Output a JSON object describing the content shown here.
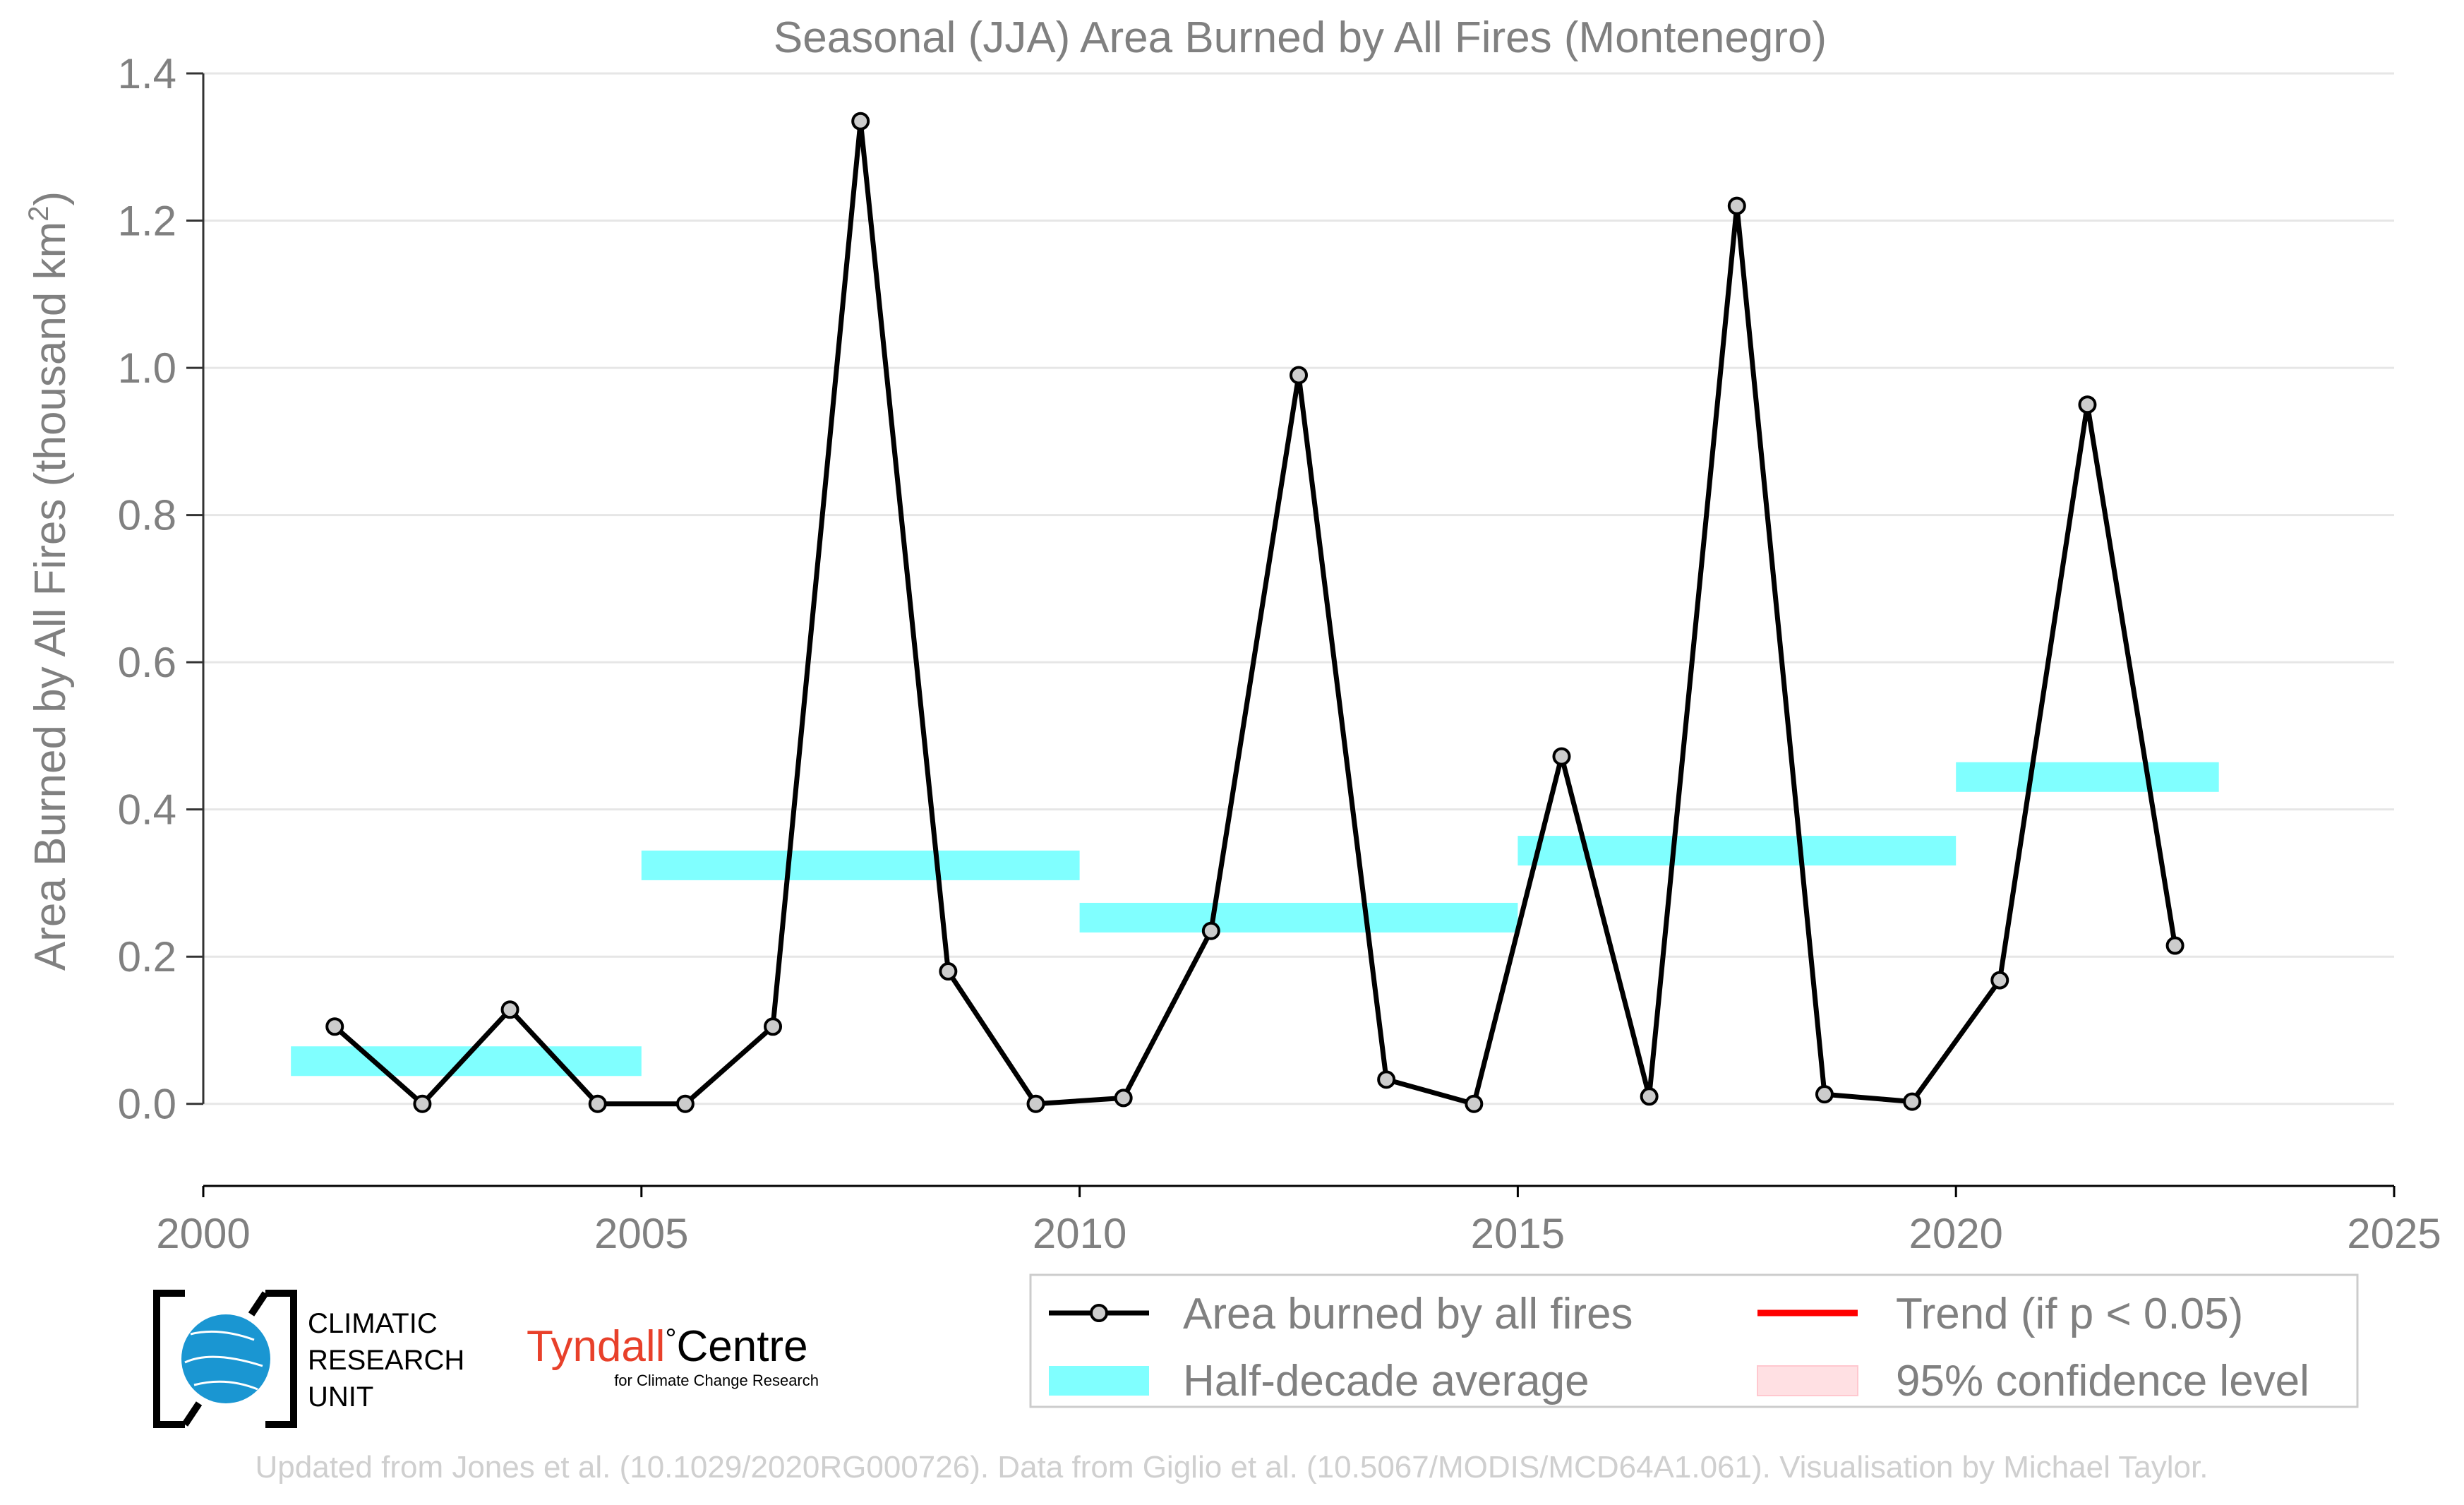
{
  "chart_data": {
    "type": "line",
    "title": "Seasonal (JJA) Area Burned by All Fires (Montenegro)",
    "ylabel_main": "Area Burned by All Fires (thousand km",
    "ylabel_sup": "2",
    "ylabel_end": ")",
    "xlim": [
      2000,
      2025
    ],
    "ylim": [
      -0.1,
      1.4
    ],
    "xticks": [
      2000,
      2005,
      2010,
      2015,
      2020,
      2025
    ],
    "yticks": [
      0.0,
      0.2,
      0.4,
      0.6,
      0.8,
      1.0,
      1.2,
      1.4
    ],
    "ytick_labels": [
      "0.0",
      "0.2",
      "0.4",
      "0.6",
      "0.8",
      "1.0",
      "1.2",
      "1.4"
    ],
    "grid": "horizontal",
    "series": [
      {
        "name": "Area burned by all fires",
        "color": "#000000",
        "marker_fill": "#cccccc",
        "x": [
          2001.5,
          2002.5,
          2003.5,
          2004.5,
          2005.5,
          2006.5,
          2007.5,
          2008.5,
          2009.5,
          2010.5,
          2011.5,
          2012.5,
          2013.5,
          2014.5,
          2015.5,
          2016.5,
          2017.5,
          2018.5,
          2019.5,
          2020.5,
          2021.5,
          2022.5
        ],
        "y": [
          0.105,
          0.0,
          0.128,
          0.0,
          0.0,
          0.105,
          1.335,
          0.18,
          0.0,
          0.008,
          0.235,
          0.99,
          0.033,
          0.0,
          0.472,
          0.01,
          1.22,
          0.013,
          0.003,
          0.168,
          0.95,
          0.215
        ]
      }
    ],
    "half_decade_average": {
      "name": "Half-decade average",
      "color": "#80ffff",
      "segments": [
        {
          "x0": 2001,
          "x1": 2005,
          "y": 0.058
        },
        {
          "x0": 2005,
          "x1": 2010,
          "y": 0.324
        },
        {
          "x0": 2010,
          "x1": 2015,
          "y": 0.253
        },
        {
          "x0": 2015,
          "x1": 2020,
          "y": 0.344
        },
        {
          "x0": 2020,
          "x1": 2023,
          "y": 0.444
        }
      ]
    },
    "legend": {
      "placement": "bottom-right",
      "entries": [
        {
          "label": "Area burned by all fires",
          "kind": "line-marker",
          "color": "#000000"
        },
        {
          "label": "Trend (if p < 0.05)",
          "kind": "line",
          "color": "#ff0000"
        },
        {
          "label": "Half-decade average",
          "kind": "band",
          "color": "#80ffff"
        },
        {
          "label": "95% confidence level",
          "kind": "band",
          "color": "#ffe0e3"
        }
      ]
    }
  },
  "logos": {
    "cru_lines": [
      "CLIMATIC",
      "RESEARCH",
      "UNIT"
    ],
    "tyndall_main": "Tyndall",
    "tyndall_degree": "°",
    "tyndall_centre": "Centre",
    "tyndall_sub": "for Climate Change Research"
  },
  "footer": {
    "credit": "Updated from Jones et al. (10.1029/2020RG000726). Data from Giglio et al. (10.5067/MODIS/MCD64A1.061). Visualisation by Michael Taylor."
  },
  "colors": {
    "text_gray": "#808080",
    "grid": "#e6e6e6",
    "footer_gray": "#cfcfcf",
    "cru_blue": "#1a96d2",
    "tyndall_red": "#e8402a"
  }
}
